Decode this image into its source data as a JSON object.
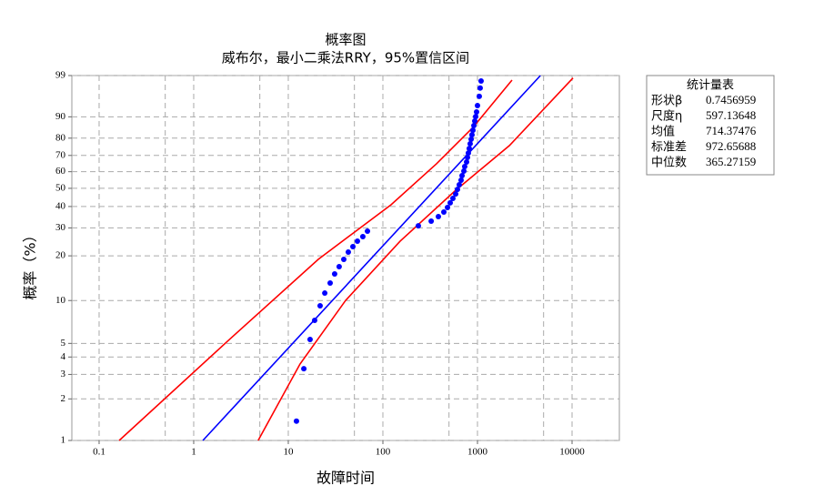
{
  "chart_data": {
    "type": "probability",
    "title": "概率图",
    "subtitle": "威布尔，最小二乘法RRY，95%置信区间",
    "x_label": "故障时间",
    "y_label": "概率（%）",
    "xscale": "log",
    "yscale": "weibull",
    "grid": true,
    "xlim": [
      0.0515,
      31623
    ],
    "ylim": [
      1,
      99
    ],
    "xticks": [
      0.1,
      1,
      10,
      100,
      1000,
      10000
    ],
    "x_minor_grid": [
      0.5,
      5,
      50,
      500,
      5000
    ],
    "yticks": [
      1,
      2,
      3,
      4,
      5,
      10,
      20,
      30,
      40,
      50,
      60,
      70,
      80,
      90,
      99
    ],
    "series": [
      {
        "type": "scatter",
        "color": "#0000ff",
        "x": [
          12.2,
          14.6,
          17.0,
          19.0,
          21.7,
          24.3,
          27.7,
          30.9,
          34.5,
          38.6,
          43.1,
          48.2,
          53.8,
          61.4,
          68.7,
          237,
          324,
          386,
          441,
          482,
          515,
          550,
          588,
          614,
          642,
          671,
          687,
          718,
          733,
          767,
          784,
          801,
          819,
          837,
          857,
          875,
          895,
          916,
          936,
          957,
          978,
          1000,
          1045,
          1068,
          1092
        ],
        "values": [
          1.38,
          3.3,
          5.33,
          7.28,
          9.19,
          11.25,
          13.18,
          15.18,
          16.97,
          18.97,
          21.16,
          22.93,
          24.83,
          26.52,
          28.65,
          30.9,
          32.95,
          35.03,
          37.2,
          39.5,
          41.9,
          44.3,
          46.8,
          49.4,
          52.1,
          54.8,
          57.6,
          60.4,
          63.2,
          66.0,
          68.8,
          71.5,
          74.2,
          76.9,
          79.4,
          81.8,
          84.1,
          86.3,
          88.3,
          90.1,
          91.8,
          93.8,
          96.1,
          97.6,
          98.5
        ]
      },
      {
        "type": "line",
        "color": "#0000ff",
        "x": [
          1.25,
          4630
        ],
        "values": [
          1,
          99
        ]
      },
      {
        "type": "line",
        "color": "#ff0000",
        "x": [
          0.163,
          2.27,
          20.8,
          122,
          369,
          895,
          2318
        ],
        "values": [
          1,
          5.17,
          19.0,
          40.9,
          64.9,
          85.4,
          98.6
        ]
      },
      {
        "type": "line",
        "color": "#ff0000",
        "x": [
          4.8,
          13.3,
          40.3,
          152,
          575,
          2173,
          10230
        ],
        "values": [
          1,
          3.56,
          10.0,
          24.8,
          48.4,
          75.8,
          98.8
        ]
      }
    ],
    "stats_table": {
      "title": "统计量表",
      "rows": [
        [
          "形状β",
          0.7456959
        ],
        [
          "尺度η",
          597.13648
        ],
        [
          "均值",
          714.37476
        ],
        [
          "标准差",
          972.65688
        ],
        [
          "中位数",
          365.27159
        ]
      ]
    }
  }
}
